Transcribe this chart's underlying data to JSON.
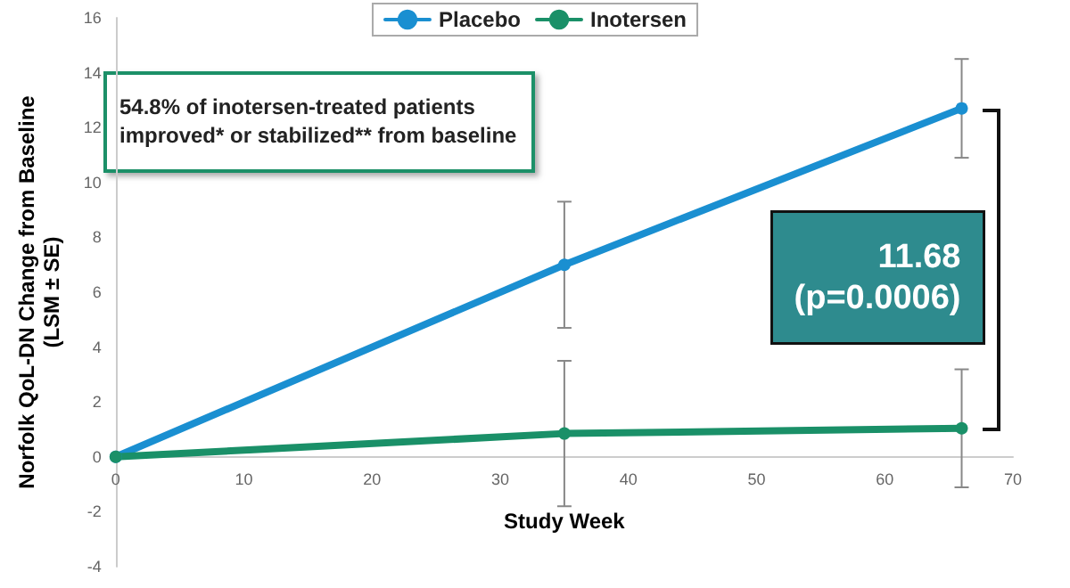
{
  "chart_data": {
    "type": "line",
    "xlabel": "Study Week",
    "ylabel": "Norfolk QoL-DN Change from Baseline\n(LSM ± SE)",
    "xlim": [
      0,
      70
    ],
    "xticks": [
      0,
      10,
      20,
      30,
      40,
      50,
      60,
      70
    ],
    "ylim": [
      -4,
      16
    ],
    "yticks": [
      -4,
      -2,
      0,
      2,
      4,
      6,
      8,
      10,
      12,
      14,
      16
    ],
    "series": [
      {
        "name": "Placebo",
        "color": "#1a8fd1",
        "x": [
          0,
          35,
          66
        ],
        "values": [
          0,
          7.0,
          12.7
        ],
        "errors": [
          null,
          2.3,
          1.8
        ]
      },
      {
        "name": "Inotersen",
        "color": "#1a9068",
        "x": [
          0,
          35,
          66
        ],
        "values": [
          0,
          0.85,
          1.04
        ],
        "errors": [
          null,
          2.65,
          2.15
        ]
      }
    ],
    "annotations": [
      "54.8% of inotersen-treated patients\nimproved* or stabilized** from baseline",
      "11.68\n(p=0.0006)"
    ],
    "legend": "top",
    "grid": false,
    "marker": "circle",
    "line_style": "solid"
  }
}
